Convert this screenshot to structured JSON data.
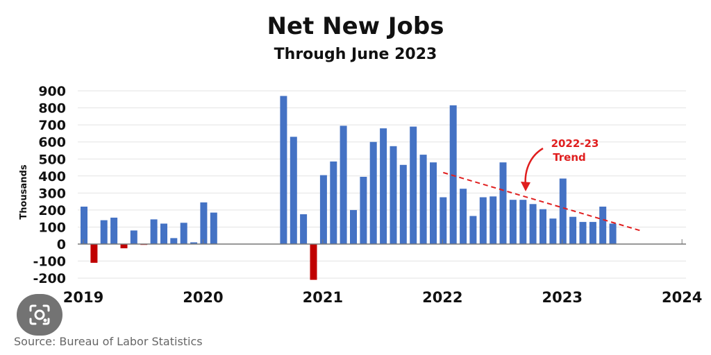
{
  "chart_data": {
    "type": "bar",
    "title": "Net New Jobs",
    "subtitle": "Through June 2023",
    "ylabel": "Thousands",
    "ylim": [
      -200,
      900
    ],
    "yticks": [
      "900",
      "800",
      "700",
      "600",
      "500",
      "400",
      "300",
      "200",
      "100",
      "0",
      "-100",
      "-200"
    ],
    "xticks": [
      "2019",
      "2020",
      "2021",
      "2022",
      "2023",
      "2024"
    ],
    "x_start": "2019-01",
    "grid": true,
    "colors": {
      "positive": "#4472C4",
      "negative": "#C00000",
      "trend": "#E01E1E",
      "grid": "#e3e3e3"
    },
    "annotation": {
      "line1": "2022-23",
      "line2": "Trend"
    },
    "trend_line": {
      "from": [
        "2022-01",
        420
      ],
      "to": [
        "2023-09",
        75
      ]
    },
    "values": [
      220,
      -110,
      140,
      155,
      -25,
      80,
      -5,
      145,
      120,
      35,
      125,
      10,
      245,
      185,
      null,
      null,
      null,
      null,
      null,
      null,
      870,
      630,
      175,
      -210,
      405,
      485,
      695,
      200,
      395,
      600,
      680,
      575,
      465,
      690,
      525,
      480,
      275,
      815,
      325,
      165,
      275,
      280,
      480,
      260,
      260,
      235,
      205,
      150,
      385,
      160,
      130,
      130,
      220,
      120
    ]
  },
  "source": "Source:  Bureau of Labor Statistics"
}
